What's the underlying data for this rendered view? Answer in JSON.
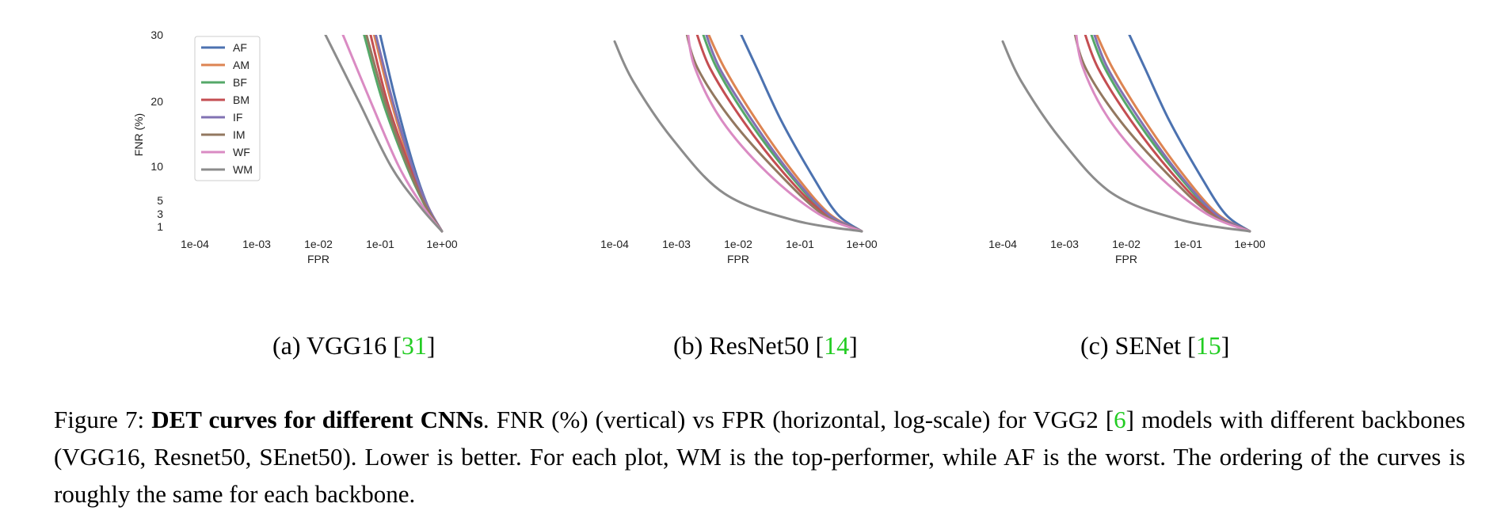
{
  "chart_data": [
    {
      "type": "line",
      "subcaption": {
        "label": "(a) VGG16 [",
        "ref": "31",
        "close": "]"
      },
      "xlabel": "FPR",
      "ylabel": "FNR (%)",
      "x_scale": "log",
      "xlim": [
        0.0001,
        1
      ],
      "xticks": [
        "1e-04",
        "1e-03",
        "1e-02",
        "1e-01",
        "1e+00"
      ],
      "yticks": [
        "30",
        "20",
        "10",
        "5",
        "3",
        "1"
      ],
      "ytick_values": [
        30,
        20,
        10,
        5,
        3,
        1
      ],
      "ylim": [
        0,
        30
      ],
      "grid": false,
      "legend": "top-left",
      "series": [
        {
          "name": "AF",
          "color": "#4c72b0",
          "x": [
            0.1,
            0.18,
            0.35,
            0.6,
            1.0
          ],
          "y": [
            30,
            20,
            10,
            4,
            0
          ]
        },
        {
          "name": "AM",
          "color": "#dd8452",
          "x": [
            0.08,
            0.15,
            0.32,
            0.6,
            1.0
          ],
          "y": [
            30,
            20,
            10,
            4,
            0
          ]
        },
        {
          "name": "BF",
          "color": "#55a868",
          "x": [
            0.055,
            0.11,
            0.27,
            0.55,
            1.0
          ],
          "y": [
            30,
            20,
            10,
            4,
            0
          ]
        },
        {
          "name": "BM",
          "color": "#c44e52",
          "x": [
            0.07,
            0.13,
            0.3,
            0.58,
            1.0
          ],
          "y": [
            30,
            20,
            10,
            4,
            0
          ]
        },
        {
          "name": "IF",
          "color": "#8172b3",
          "x": [
            0.085,
            0.16,
            0.33,
            0.6,
            1.0
          ],
          "y": [
            30,
            20,
            10,
            4,
            0
          ]
        },
        {
          "name": "IM",
          "color": "#937860",
          "x": [
            0.06,
            0.12,
            0.28,
            0.56,
            1.0
          ],
          "y": [
            30,
            20,
            10,
            4,
            0
          ]
        },
        {
          "name": "WF",
          "color": "#da8bc3",
          "x": [
            0.025,
            0.07,
            0.2,
            0.5,
            1.0
          ],
          "y": [
            30,
            20,
            10,
            4,
            0
          ]
        },
        {
          "name": "WM",
          "color": "#8c8c8c",
          "x": [
            0.013,
            0.045,
            0.15,
            0.45,
            1.0
          ],
          "y": [
            30,
            20,
            10,
            4,
            0
          ]
        }
      ]
    },
    {
      "type": "line",
      "subcaption": {
        "label": "(b) ResNet50 [",
        "ref": "14",
        "close": "]"
      },
      "xlabel": "FPR",
      "ylabel": "",
      "x_scale": "log",
      "xlim": [
        0.0001,
        1
      ],
      "xticks": [
        "1e-04",
        "1e-03",
        "1e-02",
        "1e-01",
        "1e+00"
      ],
      "yticks": [],
      "ylim": [
        0,
        30
      ],
      "grid": false,
      "legend": "",
      "series": [
        {
          "name": "AF",
          "color": "#4c72b0",
          "x": [
            0.01,
            0.02,
            0.05,
            0.15,
            0.4,
            1.0
          ],
          "y": [
            31,
            25,
            17,
            9,
            3,
            0
          ]
        },
        {
          "name": "AM",
          "color": "#dd8452",
          "x": [
            0.003,
            0.006,
            0.02,
            0.08,
            0.3,
            1.0
          ],
          "y": [
            31,
            25,
            17,
            9,
            3,
            0
          ]
        },
        {
          "name": "BF",
          "color": "#55a868",
          "x": [
            0.0025,
            0.0045,
            0.015,
            0.065,
            0.27,
            1.0
          ],
          "y": [
            31,
            25,
            17,
            9,
            3,
            0
          ]
        },
        {
          "name": "BM",
          "color": "#c44e52",
          "x": [
            0.002,
            0.0035,
            0.012,
            0.055,
            0.25,
            1.0
          ],
          "y": [
            31,
            25,
            17,
            9,
            3,
            0
          ]
        },
        {
          "name": "IF",
          "color": "#8172b3",
          "x": [
            0.0028,
            0.005,
            0.017,
            0.07,
            0.28,
            1.0
          ],
          "y": [
            31,
            25,
            17,
            9,
            3,
            0
          ]
        },
        {
          "name": "IM",
          "color": "#937860",
          "x": [
            0.0014,
            0.0022,
            0.008,
            0.045,
            0.23,
            1.0
          ],
          "y": [
            31,
            25,
            17,
            9,
            3,
            0
          ]
        },
        {
          "name": "WF",
          "color": "#da8bc3",
          "x": [
            0.0015,
            0.002,
            0.0055,
            0.03,
            0.2,
            1.0
          ],
          "y": [
            31,
            25,
            17,
            9,
            3,
            0
          ]
        },
        {
          "name": "WM",
          "color": "#8c8c8c",
          "x": [
            0.0001,
            0.0002,
            0.0009,
            0.006,
            0.08,
            1.0
          ],
          "y": [
            29,
            23,
            14,
            6,
            2,
            0
          ]
        }
      ]
    },
    {
      "type": "line",
      "subcaption": {
        "label": "(c) SENet [",
        "ref": "15",
        "close": "]"
      },
      "xlabel": "FPR",
      "ylabel": "",
      "x_scale": "log",
      "xlim": [
        0.0001,
        1
      ],
      "xticks": [
        "1e-04",
        "1e-03",
        "1e-02",
        "1e-01",
        "1e+00"
      ],
      "yticks": [],
      "ylim": [
        0,
        30
      ],
      "grid": false,
      "legend": "",
      "series": [
        {
          "name": "AF",
          "color": "#4c72b0",
          "x": [
            0.01,
            0.02,
            0.05,
            0.15,
            0.4,
            1.0
          ],
          "y": [
            31,
            25,
            17,
            9,
            3,
            0
          ]
        },
        {
          "name": "AM",
          "color": "#dd8452",
          "x": [
            0.003,
            0.006,
            0.02,
            0.08,
            0.3,
            1.0
          ],
          "y": [
            31,
            25,
            17,
            9,
            3,
            0
          ]
        },
        {
          "name": "BF",
          "color": "#55a868",
          "x": [
            0.0025,
            0.0045,
            0.015,
            0.065,
            0.27,
            1.0
          ],
          "y": [
            31,
            25,
            17,
            9,
            3,
            0
          ]
        },
        {
          "name": "BM",
          "color": "#c44e52",
          "x": [
            0.002,
            0.0035,
            0.012,
            0.055,
            0.25,
            1.0
          ],
          "y": [
            31,
            25,
            17,
            9,
            3,
            0
          ]
        },
        {
          "name": "IF",
          "color": "#8172b3",
          "x": [
            0.0028,
            0.005,
            0.017,
            0.07,
            0.28,
            1.0
          ],
          "y": [
            31,
            25,
            17,
            9,
            3,
            0
          ]
        },
        {
          "name": "IM",
          "color": "#937860",
          "x": [
            0.0014,
            0.0022,
            0.008,
            0.045,
            0.23,
            1.0
          ],
          "y": [
            31,
            25,
            17,
            9,
            3,
            0
          ]
        },
        {
          "name": "WF",
          "color": "#da8bc3",
          "x": [
            0.0015,
            0.002,
            0.0055,
            0.03,
            0.2,
            1.0
          ],
          "y": [
            31,
            25,
            17,
            9,
            3,
            0
          ]
        },
        {
          "name": "WM",
          "color": "#8c8c8c",
          "x": [
            0.0001,
            0.0002,
            0.0009,
            0.006,
            0.08,
            1.0
          ],
          "y": [
            29,
            23,
            14,
            6,
            2,
            0
          ]
        }
      ]
    }
  ],
  "caption": {
    "label": "Figure 7: ",
    "bold": "DET curves for different CNNs",
    "part1": ". FNR (%) (vertical) vs FPR (horizontal, log-scale) for VGG2 [",
    "ref": "6",
    "part2": "] models with different backbones (VGG16, Resnet50, SEnet50). Lower is better. For each plot, WM is the top-performer, while AF is the worst. The ordering of the curves is roughly the same for each backbone."
  },
  "colors": {
    "reference_link": "#22cc22"
  }
}
